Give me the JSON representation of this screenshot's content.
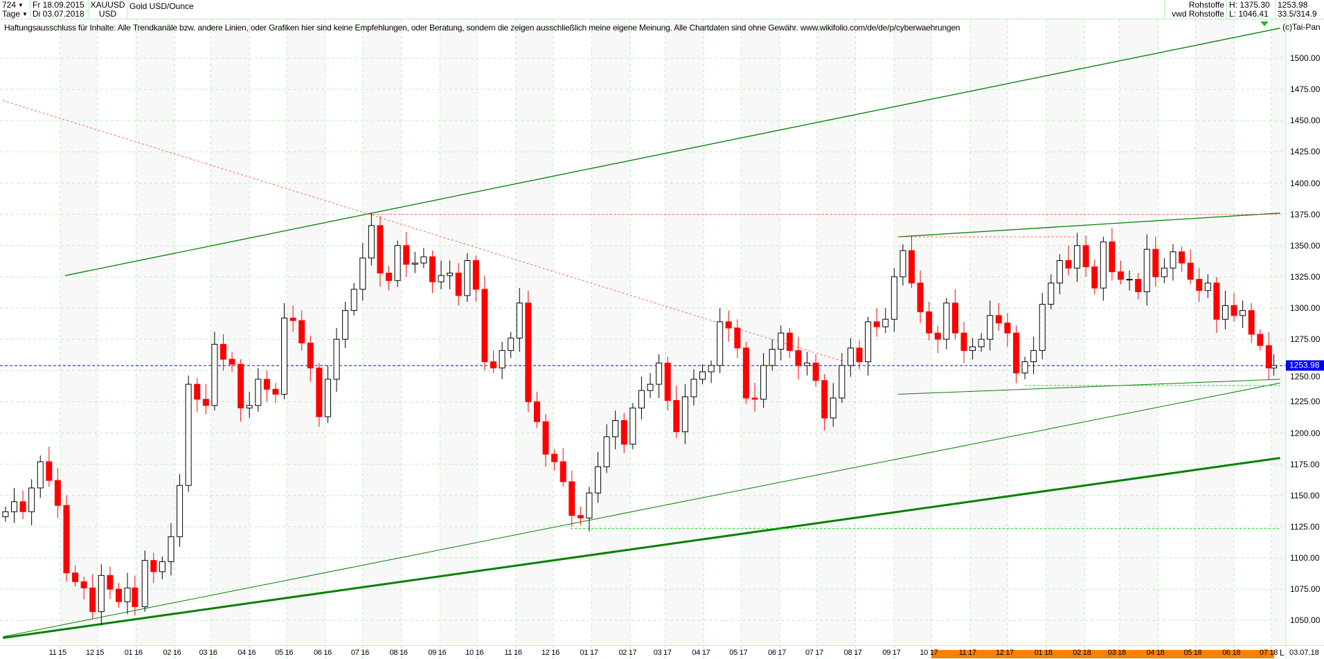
{
  "header": {
    "count": "724",
    "interval": "Tage",
    "from_date": "Fr 18.09.2015",
    "to_date": "Di 03.07.2018",
    "symbol": "XAUUSD",
    "currency": "USD",
    "name": "Gold USD/Ounce",
    "category": "Rohstoffe",
    "source": "vwd Rohstoffe",
    "high": "H: 1375.30",
    "low": "L: 1046.41",
    "last": "1253.98",
    "extra": "33.5/314.9"
  },
  "disclaimer": "Haftungsausschluss für Inhalte: Alle Trendkanäle bzw. andere Linien, oder Grafiken hier sind keine Empfehlungen, oder Beratung, sondern die zeigen ausschließlich meine eigene Meinung. Alle Chartdaten sind ohne Gewähr.  www.wikifolio.com/de/de/p/cyberwaehrungen",
  "copyright": "(c)Tai-Pan",
  "footer": {
    "mode": "L",
    "date": "03.07.18"
  },
  "colors": {
    "up": "#000000",
    "down": "#ff0000",
    "trend": "#008000",
    "last_price": "#0000ff",
    "grid": "#b8f0b8",
    "range_bar": "#ff8000"
  },
  "chart_data": {
    "type": "candlestick",
    "ylim": [
      1035,
      1525
    ],
    "yticks": [
      "1050.00",
      "1075.00",
      "1100.00",
      "1125.00",
      "1150.00",
      "1175.00",
      "1200.00",
      "1225.00",
      "1250.00",
      "1275.00",
      "1300.00",
      "1325.00",
      "1350.00",
      "1375.00",
      "1400.00",
      "1425.00",
      "1450.00",
      "1475.00",
      "1500.00"
    ],
    "xticks": [
      {
        "date": "2015-11-01",
        "label": "11 15"
      },
      {
        "date": "2015-12-01",
        "label": "12 15"
      },
      {
        "date": "2016-01-01",
        "label": "01 16"
      },
      {
        "date": "2016-02-01",
        "label": "02 16"
      },
      {
        "date": "2016-03-01",
        "label": "03 16"
      },
      {
        "date": "2016-04-01",
        "label": "04 16"
      },
      {
        "date": "2016-05-01",
        "label": "05 16"
      },
      {
        "date": "2016-06-01",
        "label": "06 16"
      },
      {
        "date": "2016-07-01",
        "label": "07 16"
      },
      {
        "date": "2016-08-01",
        "label": "08 16"
      },
      {
        "date": "2016-09-01",
        "label": "09 16"
      },
      {
        "date": "2016-10-01",
        "label": "10 16"
      },
      {
        "date": "2016-11-01",
        "label": "11 16"
      },
      {
        "date": "2016-12-01",
        "label": "12 16"
      },
      {
        "date": "2017-01-01",
        "label": "01 17"
      },
      {
        "date": "2017-02-01",
        "label": "02 17"
      },
      {
        "date": "2017-03-01",
        "label": "03 17"
      },
      {
        "date": "2017-04-01",
        "label": "04 17"
      },
      {
        "date": "2017-05-01",
        "label": "05 17"
      },
      {
        "date": "2017-06-01",
        "label": "06 17"
      },
      {
        "date": "2017-07-01",
        "label": "07 17"
      },
      {
        "date": "2017-08-01",
        "label": "08 17"
      },
      {
        "date": "2017-09-01",
        "label": "09 17"
      },
      {
        "date": "2017-10-01",
        "label": "10 17"
      },
      {
        "date": "2017-11-01",
        "label": "11 17"
      },
      {
        "date": "2017-12-01",
        "label": "12 17"
      },
      {
        "date": "2018-01-01",
        "label": "01 18"
      },
      {
        "date": "2018-02-01",
        "label": "02 18"
      },
      {
        "date": "2018-03-01",
        "label": "03 18"
      },
      {
        "date": "2018-04-01",
        "label": "04 18"
      },
      {
        "date": "2018-05-01",
        "label": "05 18"
      },
      {
        "date": "2018-06-01",
        "label": "06 18"
      },
      {
        "date": "2018-07-01",
        "label": "07 18"
      }
    ],
    "highlight_range": [
      "2017-10-01",
      "2018-07-03"
    ],
    "last_price": 1253.98,
    "closes": [
      [
        "2015-09-18",
        1137
      ],
      [
        "2015-09-25",
        1145
      ],
      [
        "2015-10-02",
        1137
      ],
      [
        "2015-10-09",
        1156
      ],
      [
        "2015-10-16",
        1177
      ],
      [
        "2015-10-23",
        1162
      ],
      [
        "2015-10-30",
        1142
      ],
      [
        "2015-11-06",
        1088
      ],
      [
        "2015-11-13",
        1081
      ],
      [
        "2015-11-20",
        1076
      ],
      [
        "2015-11-27",
        1057
      ],
      [
        "2015-12-04",
        1086
      ],
      [
        "2015-12-11",
        1075
      ],
      [
        "2015-12-18",
        1065
      ],
      [
        "2015-12-25",
        1076
      ],
      [
        "2015-12-31",
        1061
      ],
      [
        "2016-01-08",
        1098
      ],
      [
        "2016-01-15",
        1089
      ],
      [
        "2016-01-22",
        1097
      ],
      [
        "2016-01-29",
        1117
      ],
      [
        "2016-02-05",
        1158
      ],
      [
        "2016-02-12",
        1239
      ],
      [
        "2016-02-19",
        1227
      ],
      [
        "2016-02-26",
        1222
      ],
      [
        "2016-03-04",
        1271
      ],
      [
        "2016-03-11",
        1259
      ],
      [
        "2016-03-18",
        1255
      ],
      [
        "2016-03-25",
        1220
      ],
      [
        "2016-04-01",
        1222
      ],
      [
        "2016-04-08",
        1243
      ],
      [
        "2016-04-15",
        1235
      ],
      [
        "2016-04-22",
        1231
      ],
      [
        "2016-04-29",
        1292
      ],
      [
        "2016-05-06",
        1290
      ],
      [
        "2016-05-13",
        1272
      ],
      [
        "2016-05-20",
        1252
      ],
      [
        "2016-05-27",
        1213
      ],
      [
        "2016-06-03",
        1243
      ],
      [
        "2016-06-10",
        1275
      ],
      [
        "2016-06-17",
        1298
      ],
      [
        "2016-06-24",
        1315
      ],
      [
        "2016-07-01",
        1340
      ],
      [
        "2016-07-08",
        1366
      ],
      [
        "2016-07-15",
        1328
      ],
      [
        "2016-07-22",
        1322
      ],
      [
        "2016-07-29",
        1350
      ],
      [
        "2016-08-05",
        1335
      ],
      [
        "2016-08-12",
        1336
      ],
      [
        "2016-08-19",
        1341
      ],
      [
        "2016-08-26",
        1321
      ],
      [
        "2016-09-02",
        1326
      ],
      [
        "2016-09-09",
        1328
      ],
      [
        "2016-09-16",
        1310
      ],
      [
        "2016-09-23",
        1338
      ],
      [
        "2016-09-30",
        1315
      ],
      [
        "2016-10-07",
        1257
      ],
      [
        "2016-10-14",
        1252
      ],
      [
        "2016-10-21",
        1266
      ],
      [
        "2016-10-28",
        1276
      ],
      [
        "2016-11-04",
        1304
      ],
      [
        "2016-11-11",
        1225
      ],
      [
        "2016-11-18",
        1209
      ],
      [
        "2016-11-25",
        1183
      ],
      [
        "2016-12-02",
        1177
      ],
      [
        "2016-12-09",
        1161
      ],
      [
        "2016-12-16",
        1134
      ],
      [
        "2016-12-23",
        1132
      ],
      [
        "2016-12-30",
        1152
      ],
      [
        "2017-01-06",
        1173
      ],
      [
        "2017-01-13",
        1197
      ],
      [
        "2017-01-20",
        1210
      ],
      [
        "2017-01-27",
        1191
      ],
      [
        "2017-02-03",
        1220
      ],
      [
        "2017-02-10",
        1234
      ],
      [
        "2017-02-17",
        1239
      ],
      [
        "2017-02-24",
        1256
      ],
      [
        "2017-03-03",
        1226
      ],
      [
        "2017-03-10",
        1201
      ],
      [
        "2017-03-17",
        1229
      ],
      [
        "2017-03-24",
        1243
      ],
      [
        "2017-03-31",
        1249
      ],
      [
        "2017-04-07",
        1254
      ],
      [
        "2017-04-14",
        1289
      ],
      [
        "2017-04-21",
        1284
      ],
      [
        "2017-04-28",
        1268
      ],
      [
        "2017-05-05",
        1228
      ],
      [
        "2017-05-12",
        1227
      ],
      [
        "2017-05-19",
        1254
      ],
      [
        "2017-05-26",
        1267
      ],
      [
        "2017-06-02",
        1280
      ],
      [
        "2017-06-09",
        1266
      ],
      [
        "2017-06-16",
        1254
      ],
      [
        "2017-06-23",
        1256
      ],
      [
        "2017-06-30",
        1242
      ],
      [
        "2017-07-07",
        1212
      ],
      [
        "2017-07-14",
        1228
      ],
      [
        "2017-07-21",
        1254
      ],
      [
        "2017-07-28",
        1268
      ],
      [
        "2017-08-04",
        1257
      ],
      [
        "2017-08-11",
        1289
      ],
      [
        "2017-08-18",
        1285
      ],
      [
        "2017-08-25",
        1291
      ],
      [
        "2017-09-01",
        1325
      ],
      [
        "2017-09-08",
        1346
      ],
      [
        "2017-09-15",
        1320
      ],
      [
        "2017-09-22",
        1297
      ],
      [
        "2017-09-29",
        1280
      ],
      [
        "2017-10-06",
        1275
      ],
      [
        "2017-10-13",
        1304
      ],
      [
        "2017-10-20",
        1280
      ],
      [
        "2017-10-27",
        1266
      ],
      [
        "2017-11-03",
        1269
      ],
      [
        "2017-11-10",
        1275
      ],
      [
        "2017-11-17",
        1294
      ],
      [
        "2017-11-24",
        1288
      ],
      [
        "2017-12-01",
        1280
      ],
      [
        "2017-12-08",
        1248
      ],
      [
        "2017-12-15",
        1257
      ],
      [
        "2017-12-22",
        1266
      ],
      [
        "2017-12-29",
        1303
      ],
      [
        "2018-01-05",
        1320
      ],
      [
        "2018-01-12",
        1338
      ],
      [
        "2018-01-19",
        1332
      ],
      [
        "2018-01-26",
        1350
      ],
      [
        "2018-02-02",
        1333
      ],
      [
        "2018-02-09",
        1316
      ],
      [
        "2018-02-16",
        1353
      ],
      [
        "2018-02-23",
        1329
      ],
      [
        "2018-03-02",
        1323
      ],
      [
        "2018-03-09",
        1323
      ],
      [
        "2018-03-16",
        1313
      ],
      [
        "2018-03-23",
        1347
      ],
      [
        "2018-03-30",
        1325
      ],
      [
        "2018-04-06",
        1332
      ],
      [
        "2018-04-13",
        1345
      ],
      [
        "2018-04-20",
        1336
      ],
      [
        "2018-04-27",
        1323
      ],
      [
        "2018-05-04",
        1314
      ],
      [
        "2018-05-11",
        1320
      ],
      [
        "2018-05-18",
        1291
      ],
      [
        "2018-05-25",
        1302
      ],
      [
        "2018-06-01",
        1294
      ],
      [
        "2018-06-08",
        1298
      ],
      [
        "2018-06-15",
        1279
      ],
      [
        "2018-06-22",
        1270
      ],
      [
        "2018-06-29",
        1252
      ],
      [
        "2018-07-03",
        1254
      ]
    ],
    "trendlines": [
      {
        "from": [
          "2015-11-05",
          1326
        ],
        "to": [
          "2018-07-08",
          1524
        ],
        "color": "#008000",
        "width": 1.3
      },
      {
        "from": [
          "2015-09-16",
          1037
        ],
        "to": [
          "2018-07-08",
          1240
        ],
        "color": "#008000",
        "width": 1
      },
      {
        "from": [
          "2015-09-16",
          1036
        ],
        "to": [
          "2018-07-08",
          1180
        ],
        "color": "#008000",
        "width": 3
      },
      {
        "from": [
          "2017-09-04",
          1357
        ],
        "to": [
          "2018-07-08",
          1376
        ],
        "color": "#008000",
        "width": 1.3
      },
      {
        "from": [
          "2017-09-04",
          1231
        ],
        "to": [
          "2018-07-08",
          1243
        ],
        "color": "#008000",
        "width": 1
      },
      {
        "from": [
          "2015-09-16",
          1466
        ],
        "to": [
          "2017-07-23",
          1257
        ],
        "color": "#ff6060",
        "width": 1,
        "dash": true
      },
      {
        "from": [
          "2016-07-06",
          1375
        ],
        "to": [
          "2018-07-08",
          1375
        ],
        "color": "#ff6060",
        "width": 1,
        "dash": true
      },
      {
        "from": [
          "2017-09-04",
          1357
        ],
        "to": [
          "2018-01-25",
          1357
        ],
        "color": "#ff6060",
        "width": 1,
        "dash": true
      },
      {
        "from": [
          "2016-12-15",
          1123.5
        ],
        "to": [
          "2018-07-08",
          1123.5
        ],
        "color": "#00dd00",
        "width": 1,
        "dash": true
      },
      {
        "from": [
          "2017-12-15",
          1238
        ],
        "to": [
          "2018-07-08",
          1238
        ],
        "color": "#00dd00",
        "width": 1,
        "dash": true
      }
    ]
  }
}
